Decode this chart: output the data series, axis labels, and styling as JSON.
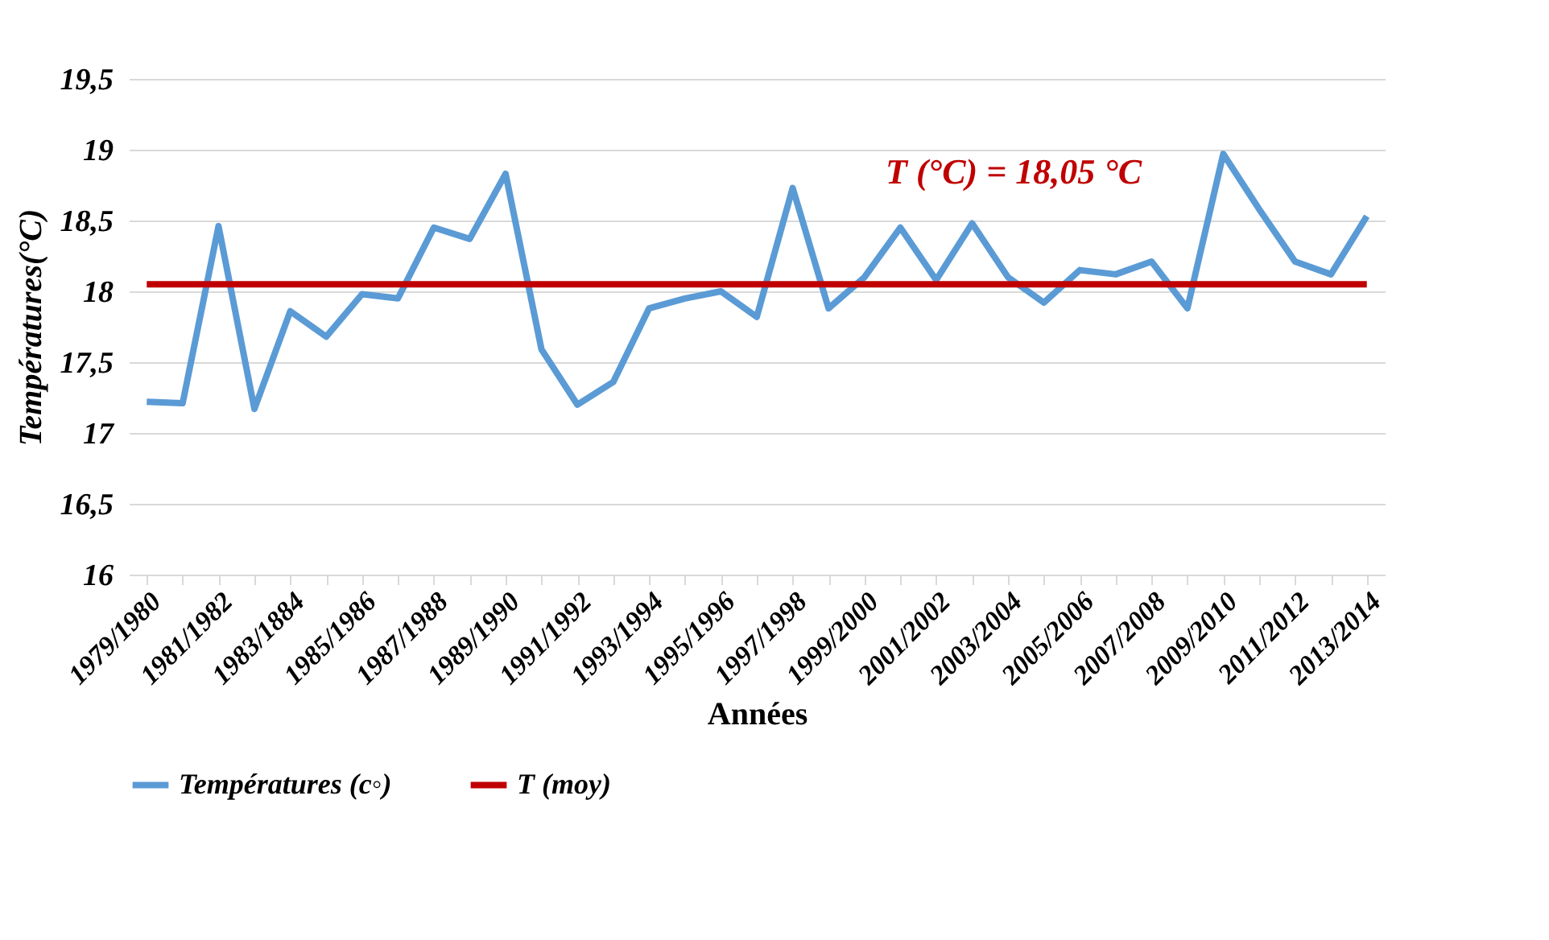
{
  "chart_data": {
    "type": "line",
    "xlabel": "Années",
    "ylabel": "Températures(°C)",
    "categories": [
      "1979/1980",
      null,
      "1981/1982",
      null,
      "1983/1884",
      null,
      "1985/1986",
      null,
      "1987/1988",
      null,
      "1989/1990",
      null,
      "1991/1992",
      null,
      "1993/1994",
      null,
      "1995/1996",
      null,
      "1997/1998",
      null,
      "1999/2000",
      null,
      "2001/2002",
      null,
      "2003/2004",
      null,
      "2005/2006",
      null,
      "2007/2008",
      null,
      "2009/2010",
      null,
      "2011/2012",
      null,
      "2013/2014"
    ],
    "series": [
      {
        "name": "Températures (c◦)",
        "color": "#5b9bd5",
        "values": [
          17.22,
          17.21,
          18.46,
          17.17,
          17.86,
          17.68,
          17.98,
          17.95,
          18.45,
          18.37,
          18.83,
          17.59,
          17.2,
          17.36,
          17.88,
          17.95,
          18.0,
          17.82,
          18.73,
          17.88,
          18.1,
          18.45,
          18.08,
          18.48,
          18.1,
          17.92,
          18.15,
          18.12,
          18.21,
          17.88,
          18.97,
          18.58,
          18.21,
          18.12,
          18.53
        ]
      },
      {
        "name": "T (moy)",
        "color": "#c00000",
        "values": [
          18.05,
          18.05,
          18.05,
          18.05,
          18.05,
          18.05,
          18.05,
          18.05,
          18.05,
          18.05,
          18.05,
          18.05,
          18.05,
          18.05,
          18.05,
          18.05,
          18.05,
          18.05,
          18.05,
          18.05,
          18.05,
          18.05,
          18.05,
          18.05,
          18.05,
          18.05,
          18.05,
          18.05,
          18.05,
          18.05,
          18.05,
          18.05,
          18.05,
          18.05,
          18.05
        ]
      }
    ],
    "annotations": [
      "T (°C) = 18,05 °C"
    ],
    "ylim": [
      16,
      19.5
    ],
    "yticks": [
      16,
      {
        "value": 16.5,
        "label": "16,5"
      },
      17,
      {
        "value": 17.5,
        "label": "17,5"
      },
      18,
      {
        "value": 18.5,
        "label": "18,5"
      },
      19,
      {
        "value": 19.5,
        "label": "19,5"
      }
    ],
    "grid": "y",
    "legend": "bottom",
    "marker": "none",
    "line_style": "solid"
  }
}
